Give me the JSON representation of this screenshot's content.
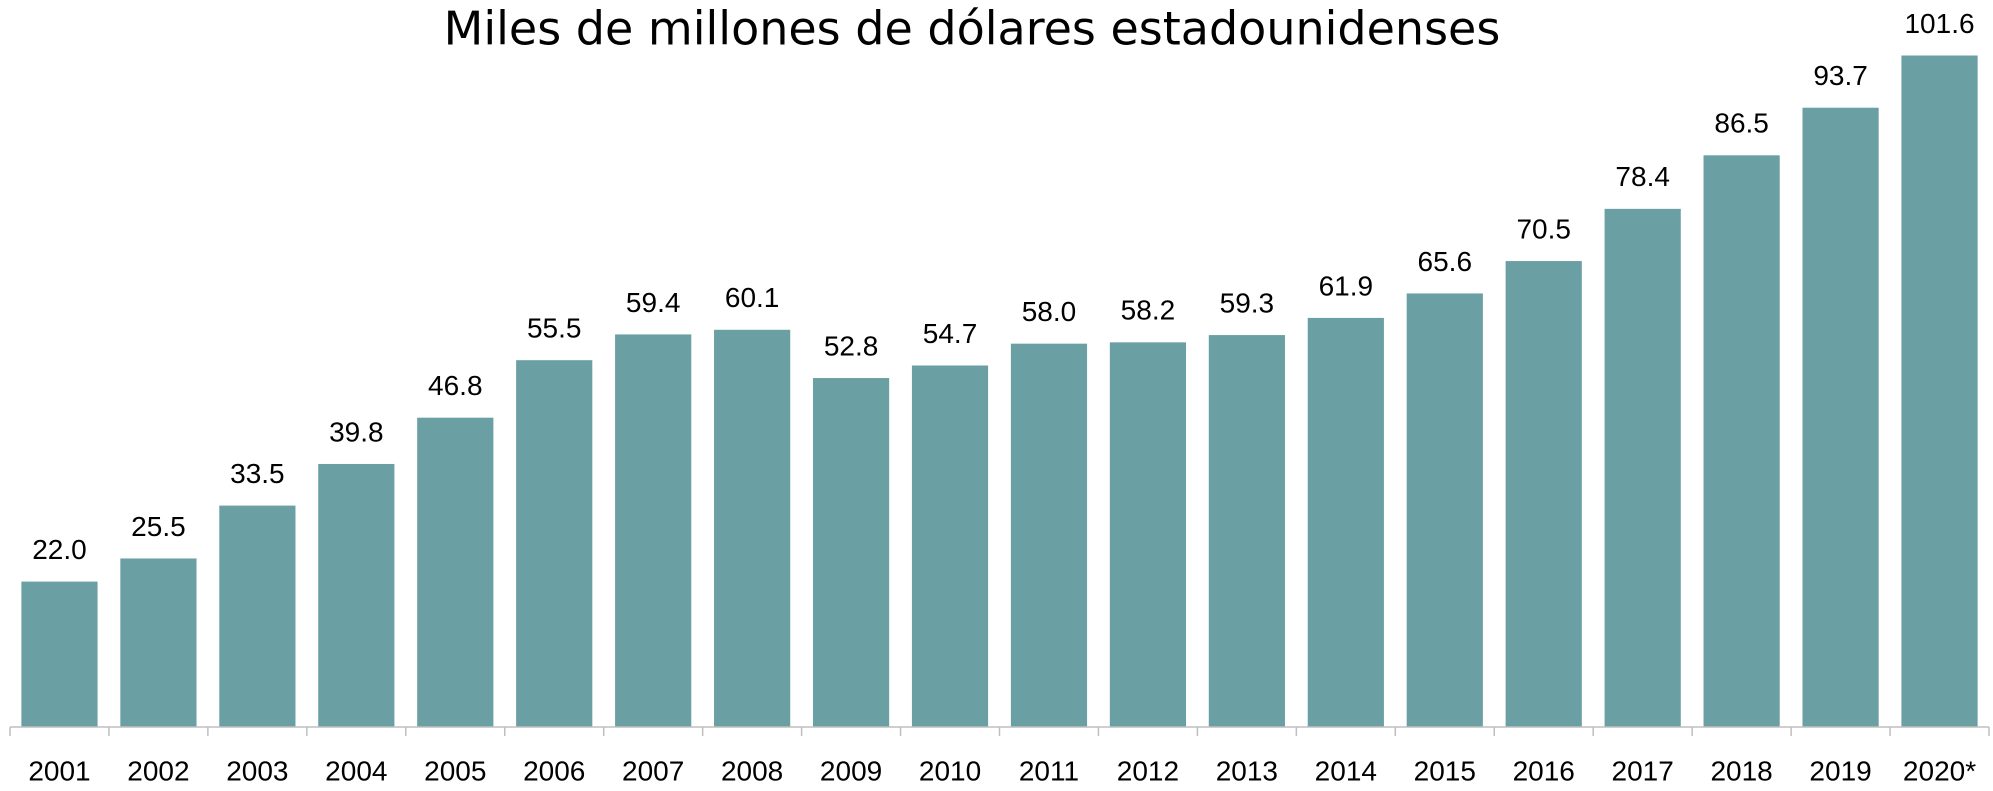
{
  "chart_data": {
    "type": "bar",
    "title": "Miles de millones de dólares estadounidenses",
    "categories": [
      "2001",
      "2002",
      "2003",
      "2004",
      "2005",
      "2006",
      "2007",
      "2008",
      "2009",
      "2010",
      "2011",
      "2012",
      "2013",
      "2014",
      "2015",
      "2016",
      "2017",
      "2018",
      "2019",
      "2020*"
    ],
    "values": [
      22.0,
      25.5,
      33.5,
      39.8,
      46.8,
      55.5,
      59.4,
      60.1,
      52.8,
      54.7,
      58.0,
      58.2,
      59.3,
      61.9,
      65.6,
      70.5,
      78.4,
      86.5,
      93.7,
      101.6
    ],
    "value_labels": [
      "22.0",
      "25.5",
      "33.5",
      "39.8",
      "46.8",
      "55.5",
      "59.4",
      "60.1",
      "52.8",
      "54.7",
      "58.0",
      "58.2",
      "59.3",
      "61.9",
      "65.6",
      "70.5",
      "78.4",
      "86.5",
      "93.7",
      "101.6"
    ],
    "color": "#6a9fa3",
    "ylim": [
      0,
      110
    ]
  }
}
